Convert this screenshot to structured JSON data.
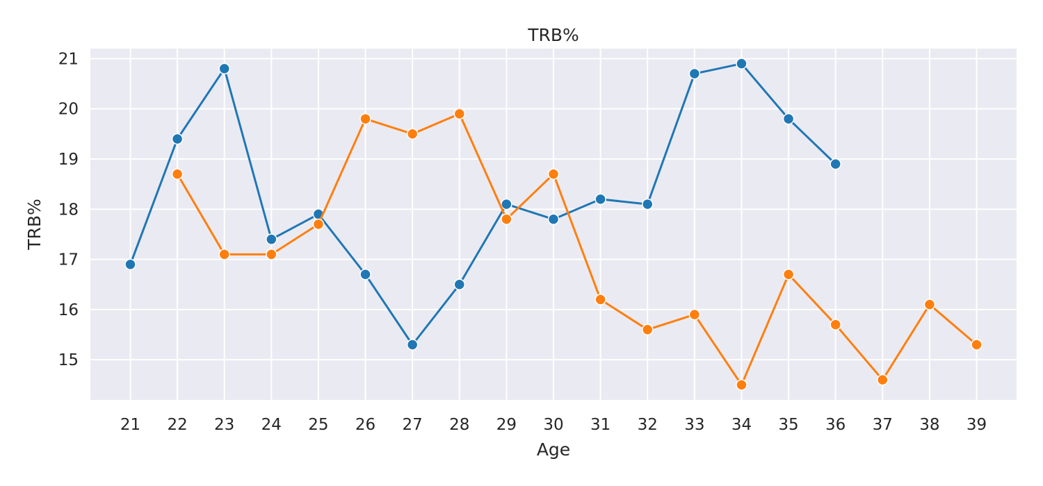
{
  "chart_data": {
    "type": "line",
    "title": "TRB%",
    "xlabel": "Age",
    "ylabel": "TRB%",
    "x": [
      21,
      22,
      23,
      24,
      25,
      26,
      27,
      28,
      29,
      30,
      31,
      32,
      33,
      34,
      35,
      36,
      37,
      38,
      39
    ],
    "xlim": [
      20.15,
      39.85
    ],
    "ylim": [
      14.2,
      21.2
    ],
    "yticks": [
      15,
      16,
      17,
      18,
      19,
      20,
      21
    ],
    "grid": true,
    "legend": "none",
    "colors": {
      "background": "#eaeaf2",
      "grid": "#ffffff",
      "text": "#262626"
    },
    "series": [
      {
        "color": "#1f77b4",
        "marker": "circle",
        "x": [
          21,
          22,
          23,
          24,
          25,
          26,
          27,
          28,
          29,
          30,
          31,
          32,
          33,
          34,
          35,
          36
        ],
        "values": [
          16.9,
          19.4,
          20.8,
          17.4,
          17.9,
          16.7,
          15.3,
          16.5,
          18.1,
          17.8,
          18.2,
          18.1,
          20.7,
          20.9,
          19.8,
          18.9
        ]
      },
      {
        "color": "#ff7f0e",
        "marker": "circle",
        "x": [
          22,
          23,
          24,
          25,
          26,
          27,
          28,
          29,
          30,
          31,
          32,
          33,
          34,
          35,
          36,
          37,
          38,
          39
        ],
        "values": [
          18.7,
          17.1,
          17.1,
          17.7,
          19.8,
          19.5,
          19.9,
          17.8,
          18.7,
          16.2,
          15.6,
          15.9,
          14.5,
          16.7,
          15.7,
          14.6,
          16.1,
          15.3
        ]
      }
    ]
  }
}
